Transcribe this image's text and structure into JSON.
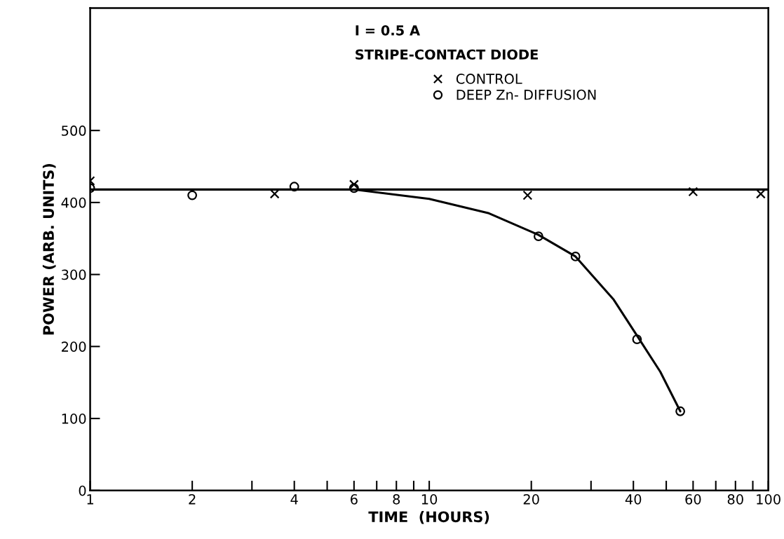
{
  "chart_data": {
    "type": "scatter",
    "xlabel": "TIME  (HOURS)",
    "ylabel": "POWER (ARB. UNITS)",
    "annotations": [
      "I = 0.5 A",
      "STRIPE-CONTACT DIODE"
    ],
    "series": [
      {
        "name": "CONTROL",
        "color": "#000000",
        "marker": "cross",
        "x": [
          1,
          3.5,
          6,
          19.5,
          60,
          95
        ],
        "values": [
          430,
          412,
          425,
          410,
          415,
          412
        ]
      },
      {
        "name": "DEEP Zn- DIFFUSION",
        "color": "#000000",
        "marker": "circle",
        "x": [
          1,
          2,
          4,
          6,
          21,
          27,
          41,
          55
        ],
        "values": [
          420,
          410,
          422,
          420,
          353,
          325,
          210,
          110
        ]
      },
      {
        "color": "#000000",
        "type": "line",
        "marker": "none",
        "x": [
          1,
          100
        ],
        "values": [
          418,
          418
        ]
      },
      {
        "color": "#000000",
        "type": "line",
        "marker": "none",
        "x": [
          6,
          10,
          15,
          21,
          27,
          35,
          41,
          48,
          55
        ],
        "values": [
          418,
          405,
          385,
          355,
          325,
          265,
          215,
          165,
          110
        ]
      }
    ],
    "log": "x",
    "xlim": [
      1,
      100
    ],
    "xticks": [
      1,
      2,
      {
        "value": 3,
        "label": null
      },
      4,
      {
        "value": 5,
        "label": null
      },
      6,
      {
        "value": 7,
        "label": null
      },
      8,
      {
        "value": 9,
        "label": null
      },
      10,
      20,
      {
        "value": 30,
        "label": null
      },
      40,
      {
        "value": 50,
        "label": null
      },
      60,
      {
        "value": 70,
        "label": null
      },
      80,
      {
        "value": 90,
        "label": null
      },
      100
    ],
    "ylim": [
      0,
      670
    ],
    "yticks": [
      0,
      100,
      200,
      300,
      400,
      500
    ],
    "grid": false,
    "legend": "top",
    "line_style": "solid"
  }
}
